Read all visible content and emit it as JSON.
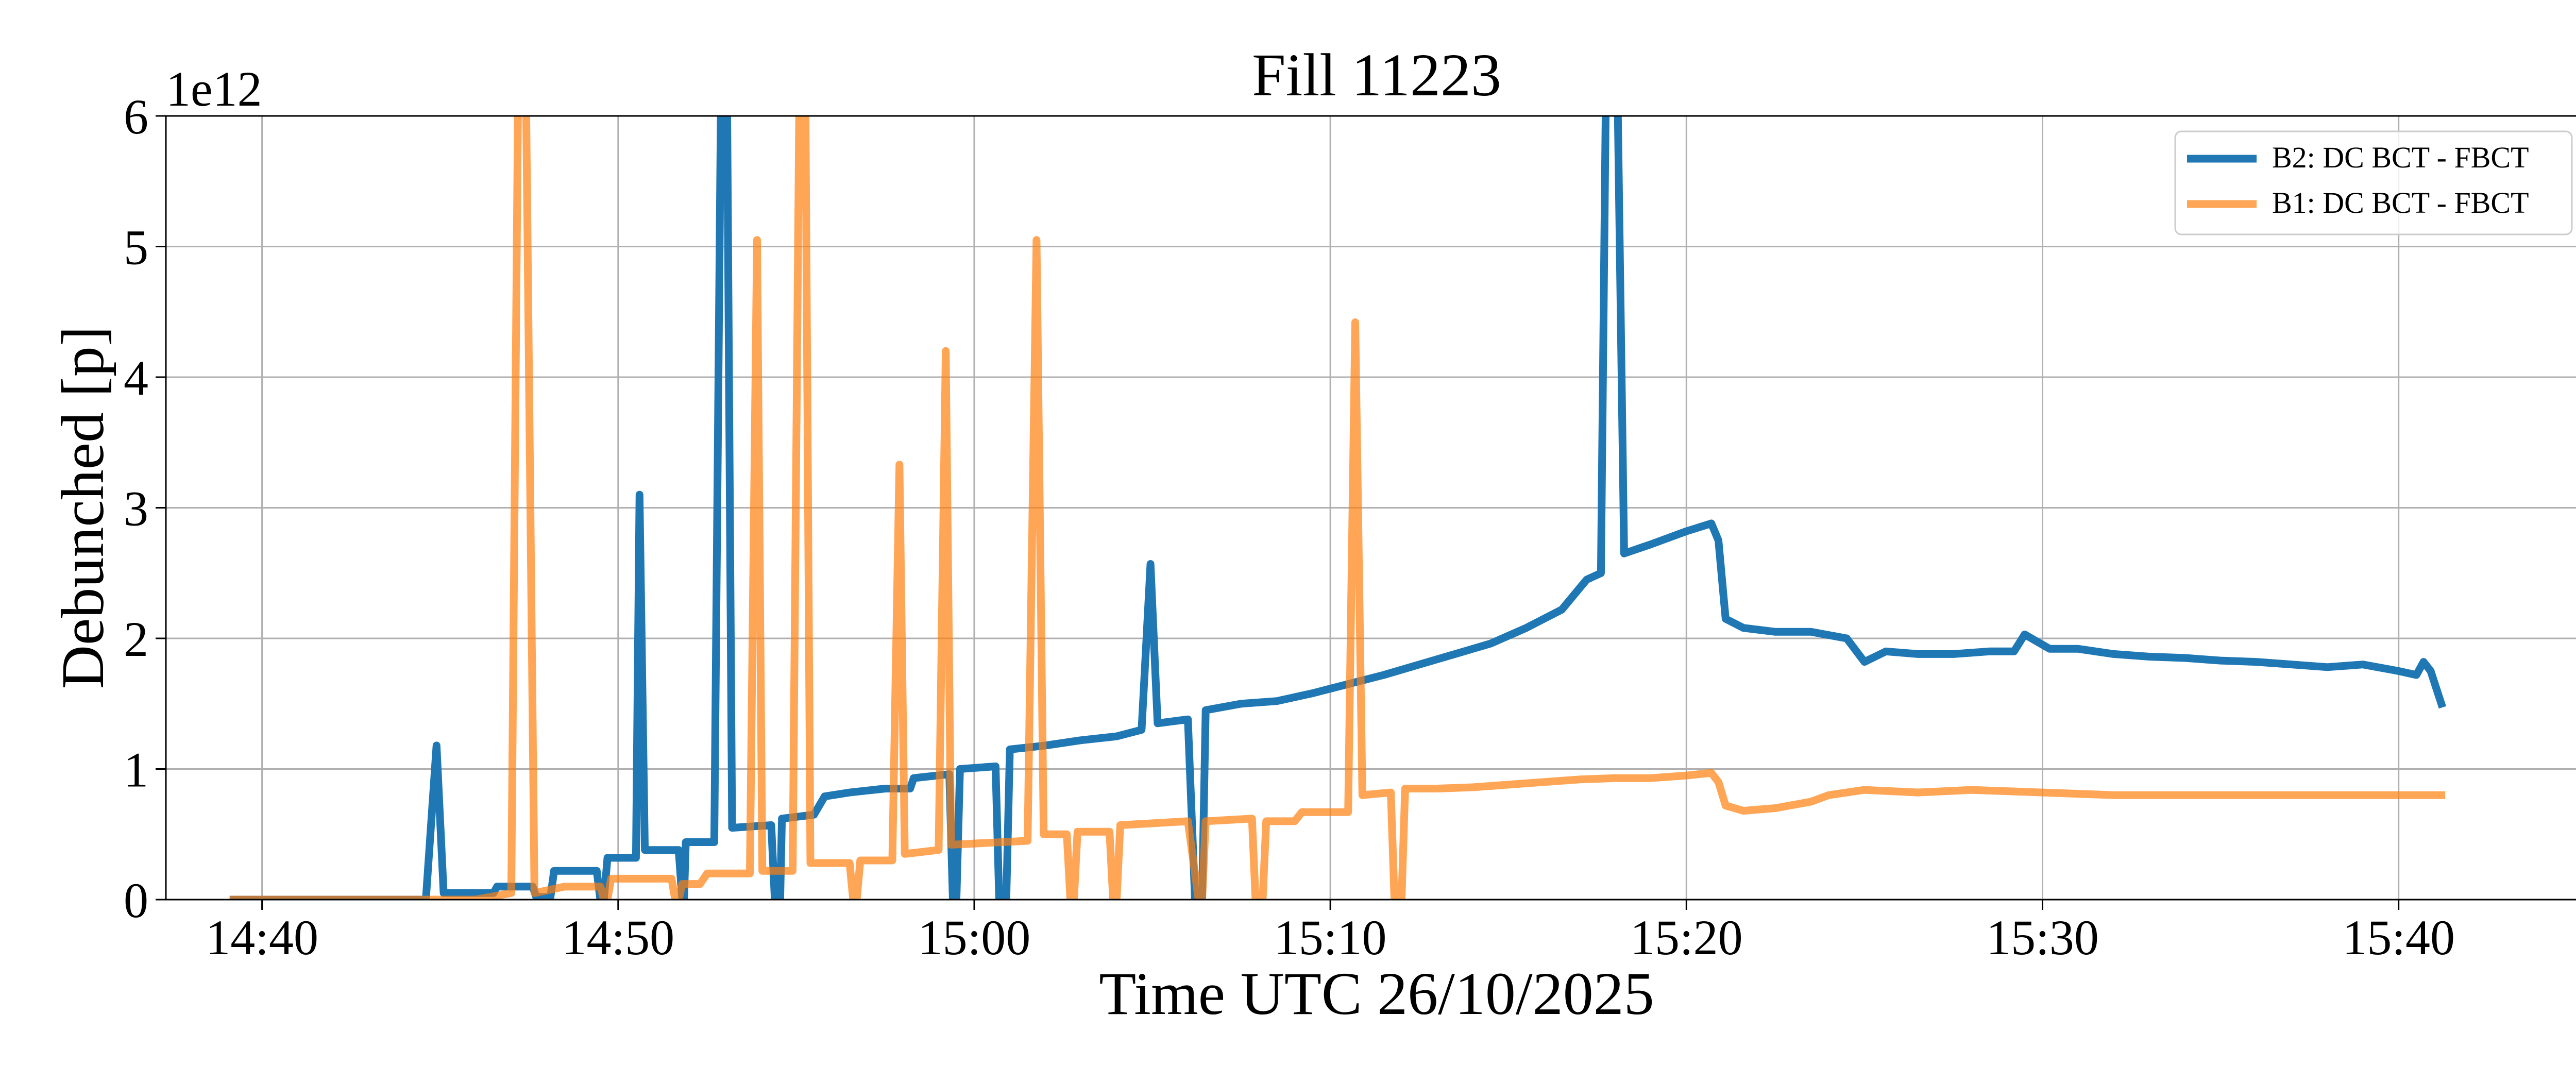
{
  "chart_data": {
    "type": "line",
    "title": "Fill 11223",
    "xlabel": "Time UTC 26/10/2025",
    "ylabel": "Debunched [p]",
    "y_offset_label": "1e12",
    "x_unit": "minutes since 14:00 UTC",
    "xlim": [
      37.3,
      105.3
    ],
    "ylim": [
      0,
      6
    ],
    "x_ticks": [
      {
        "x": 40,
        "label": "14:40"
      },
      {
        "x": 50,
        "label": "14:50"
      },
      {
        "x": 60,
        "label": "15:00"
      },
      {
        "x": 70,
        "label": "15:10"
      },
      {
        "x": 80,
        "label": "15:20"
      },
      {
        "x": 90,
        "label": "15:30"
      },
      {
        "x": 100,
        "label": "15:40"
      }
    ],
    "y_ticks": [
      {
        "y": 0,
        "label": "0"
      },
      {
        "y": 1,
        "label": "1"
      },
      {
        "y": 2,
        "label": "2"
      },
      {
        "y": 3,
        "label": "3"
      },
      {
        "y": 4,
        "label": "4"
      },
      {
        "y": 5,
        "label": "5"
      },
      {
        "y": 6,
        "label": "6"
      }
    ],
    "grid": true,
    "legend_position": "top-right",
    "series": [
      {
        "name": "B2: DC BCT - FBCT",
        "color": "#1f77b4",
        "points": [
          [
            39.2,
            0
          ],
          [
            44.6,
            0
          ],
          [
            44.9,
            1.18
          ],
          [
            45.1,
            0.05
          ],
          [
            46.5,
            0.05
          ],
          [
            46.6,
            0.1
          ],
          [
            47.6,
            0.1
          ],
          [
            47.7,
            0.02
          ],
          [
            48.1,
            0.02
          ],
          [
            48.2,
            0.22
          ],
          [
            49.4,
            0.22
          ],
          [
            49.5,
            0.0
          ],
          [
            49.6,
            0.0
          ],
          [
            49.7,
            0.32
          ],
          [
            50.5,
            0.32
          ],
          [
            50.6,
            3.1
          ],
          [
            50.75,
            0.38
          ],
          [
            51.7,
            0.38
          ],
          [
            51.8,
            0.0
          ],
          [
            51.85,
            0.0
          ],
          [
            51.9,
            0.44
          ],
          [
            52.7,
            0.44
          ],
          [
            52.9,
            6.5
          ],
          [
            53.05,
            6.5
          ],
          [
            53.2,
            0.55
          ],
          [
            54.3,
            0.57
          ],
          [
            54.4,
            0.0
          ],
          [
            54.55,
            0.0
          ],
          [
            54.6,
            0.62
          ],
          [
            55.5,
            0.65
          ],
          [
            55.8,
            0.79
          ],
          [
            56.5,
            0.82
          ],
          [
            57.5,
            0.85
          ],
          [
            58.2,
            0.85
          ],
          [
            58.3,
            0.93
          ],
          [
            59.3,
            0.96
          ],
          [
            59.4,
            0.0
          ],
          [
            59.5,
            0.0
          ],
          [
            59.6,
            1.0
          ],
          [
            60.6,
            1.02
          ],
          [
            60.7,
            0.0
          ],
          [
            60.9,
            0.0
          ],
          [
            61.0,
            1.15
          ],
          [
            62.0,
            1.18
          ],
          [
            63.0,
            1.22
          ],
          [
            64.0,
            1.25
          ],
          [
            64.7,
            1.3
          ],
          [
            64.95,
            2.57
          ],
          [
            65.15,
            1.35
          ],
          [
            66.0,
            1.38
          ],
          [
            66.2,
            0.0
          ],
          [
            66.4,
            0.0
          ],
          [
            66.5,
            1.45
          ],
          [
            67.5,
            1.5
          ],
          [
            68.5,
            1.52
          ],
          [
            69.5,
            1.58
          ],
          [
            70.5,
            1.65
          ],
          [
            71.5,
            1.72
          ],
          [
            72.5,
            1.8
          ],
          [
            73.5,
            1.88
          ],
          [
            74.5,
            1.96
          ],
          [
            75.5,
            2.08
          ],
          [
            76.5,
            2.22
          ],
          [
            77.2,
            2.45
          ],
          [
            77.6,
            2.5
          ],
          [
            77.75,
            6.5
          ],
          [
            78.05,
            6.5
          ],
          [
            78.25,
            2.65
          ],
          [
            79.0,
            2.72
          ],
          [
            80.0,
            2.82
          ],
          [
            80.7,
            2.88
          ],
          [
            80.9,
            2.75
          ],
          [
            81.1,
            2.15
          ],
          [
            81.6,
            2.08
          ],
          [
            82.5,
            2.05
          ],
          [
            83.5,
            2.05
          ],
          [
            84.5,
            2.0
          ],
          [
            85.0,
            1.82
          ],
          [
            85.6,
            1.9
          ],
          [
            86.5,
            1.88
          ],
          [
            87.5,
            1.88
          ],
          [
            88.5,
            1.9
          ],
          [
            89.2,
            1.9
          ],
          [
            89.5,
            2.03
          ],
          [
            90.2,
            1.92
          ],
          [
            91.0,
            1.92
          ],
          [
            92.0,
            1.88
          ],
          [
            93.0,
            1.86
          ],
          [
            94.0,
            1.85
          ],
          [
            95.0,
            1.83
          ],
          [
            96.0,
            1.82
          ],
          [
            97.0,
            1.8
          ],
          [
            98.0,
            1.78
          ],
          [
            99.0,
            1.8
          ],
          [
            100.0,
            1.75
          ],
          [
            100.5,
            1.72
          ],
          [
            100.7,
            1.82
          ],
          [
            100.9,
            1.75
          ],
          [
            101.2,
            1.5
          ]
        ]
      },
      {
        "name": "B1: DC BCT - FBCT",
        "color": "#ff7f0e",
        "points": [
          [
            39.2,
            0
          ],
          [
            46.0,
            0
          ],
          [
            47.0,
            0.05
          ],
          [
            47.2,
            6.5
          ],
          [
            47.4,
            6.5
          ],
          [
            47.65,
            0.05
          ],
          [
            48.5,
            0.1
          ],
          [
            49.5,
            0.1
          ],
          [
            49.6,
            0.0
          ],
          [
            49.7,
            0.0
          ],
          [
            49.8,
            0.16
          ],
          [
            51.5,
            0.16
          ],
          [
            51.6,
            0.0
          ],
          [
            51.7,
            0.0
          ],
          [
            51.8,
            0.12
          ],
          [
            52.3,
            0.12
          ],
          [
            52.5,
            0.2
          ],
          [
            53.7,
            0.2
          ],
          [
            53.9,
            5.05
          ],
          [
            54.05,
            0.22
          ],
          [
            54.9,
            0.22
          ],
          [
            55.1,
            6.5
          ],
          [
            55.25,
            6.5
          ],
          [
            55.4,
            0.28
          ],
          [
            56.5,
            0.28
          ],
          [
            56.6,
            0.0
          ],
          [
            56.7,
            0.0
          ],
          [
            56.8,
            0.3
          ],
          [
            57.7,
            0.3
          ],
          [
            57.9,
            3.33
          ],
          [
            58.05,
            0.35
          ],
          [
            59.0,
            0.38
          ],
          [
            59.2,
            4.2
          ],
          [
            59.35,
            0.42
          ],
          [
            61.5,
            0.45
          ],
          [
            61.75,
            5.05
          ],
          [
            61.95,
            0.5
          ],
          [
            62.6,
            0.5
          ],
          [
            62.7,
            0.0
          ],
          [
            62.8,
            0.0
          ],
          [
            62.9,
            0.52
          ],
          [
            63.8,
            0.52
          ],
          [
            63.9,
            0.0
          ],
          [
            64.0,
            0.0
          ],
          [
            64.1,
            0.57
          ],
          [
            66.0,
            0.6
          ],
          [
            66.3,
            0.0
          ],
          [
            66.4,
            0.0
          ],
          [
            66.5,
            0.6
          ],
          [
            67.8,
            0.62
          ],
          [
            67.9,
            0.0
          ],
          [
            68.1,
            0.0
          ],
          [
            68.2,
            0.6
          ],
          [
            69.0,
            0.6
          ],
          [
            69.2,
            0.67
          ],
          [
            70.5,
            0.67
          ],
          [
            70.7,
            4.42
          ],
          [
            70.9,
            0.8
          ],
          [
            71.7,
            0.82
          ],
          [
            71.8,
            0.0
          ],
          [
            72.0,
            0.0
          ],
          [
            72.1,
            0.85
          ],
          [
            73.0,
            0.85
          ],
          [
            74.0,
            0.86
          ],
          [
            75.0,
            0.88
          ],
          [
            76.0,
            0.9
          ],
          [
            77.0,
            0.92
          ],
          [
            78.0,
            0.93
          ],
          [
            79.0,
            0.93
          ],
          [
            80.0,
            0.95
          ],
          [
            80.7,
            0.97
          ],
          [
            80.9,
            0.9
          ],
          [
            81.1,
            0.72
          ],
          [
            81.6,
            0.68
          ],
          [
            82.5,
            0.7
          ],
          [
            83.5,
            0.75
          ],
          [
            84.0,
            0.8
          ],
          [
            85.0,
            0.84
          ],
          [
            86.5,
            0.82
          ],
          [
            88.0,
            0.84
          ],
          [
            90.0,
            0.82
          ],
          [
            92.0,
            0.8
          ],
          [
            94.0,
            0.8
          ],
          [
            96.0,
            0.8
          ],
          [
            98.0,
            0.8
          ],
          [
            100.0,
            0.8
          ],
          [
            101.2,
            0.8
          ]
        ]
      }
    ]
  }
}
